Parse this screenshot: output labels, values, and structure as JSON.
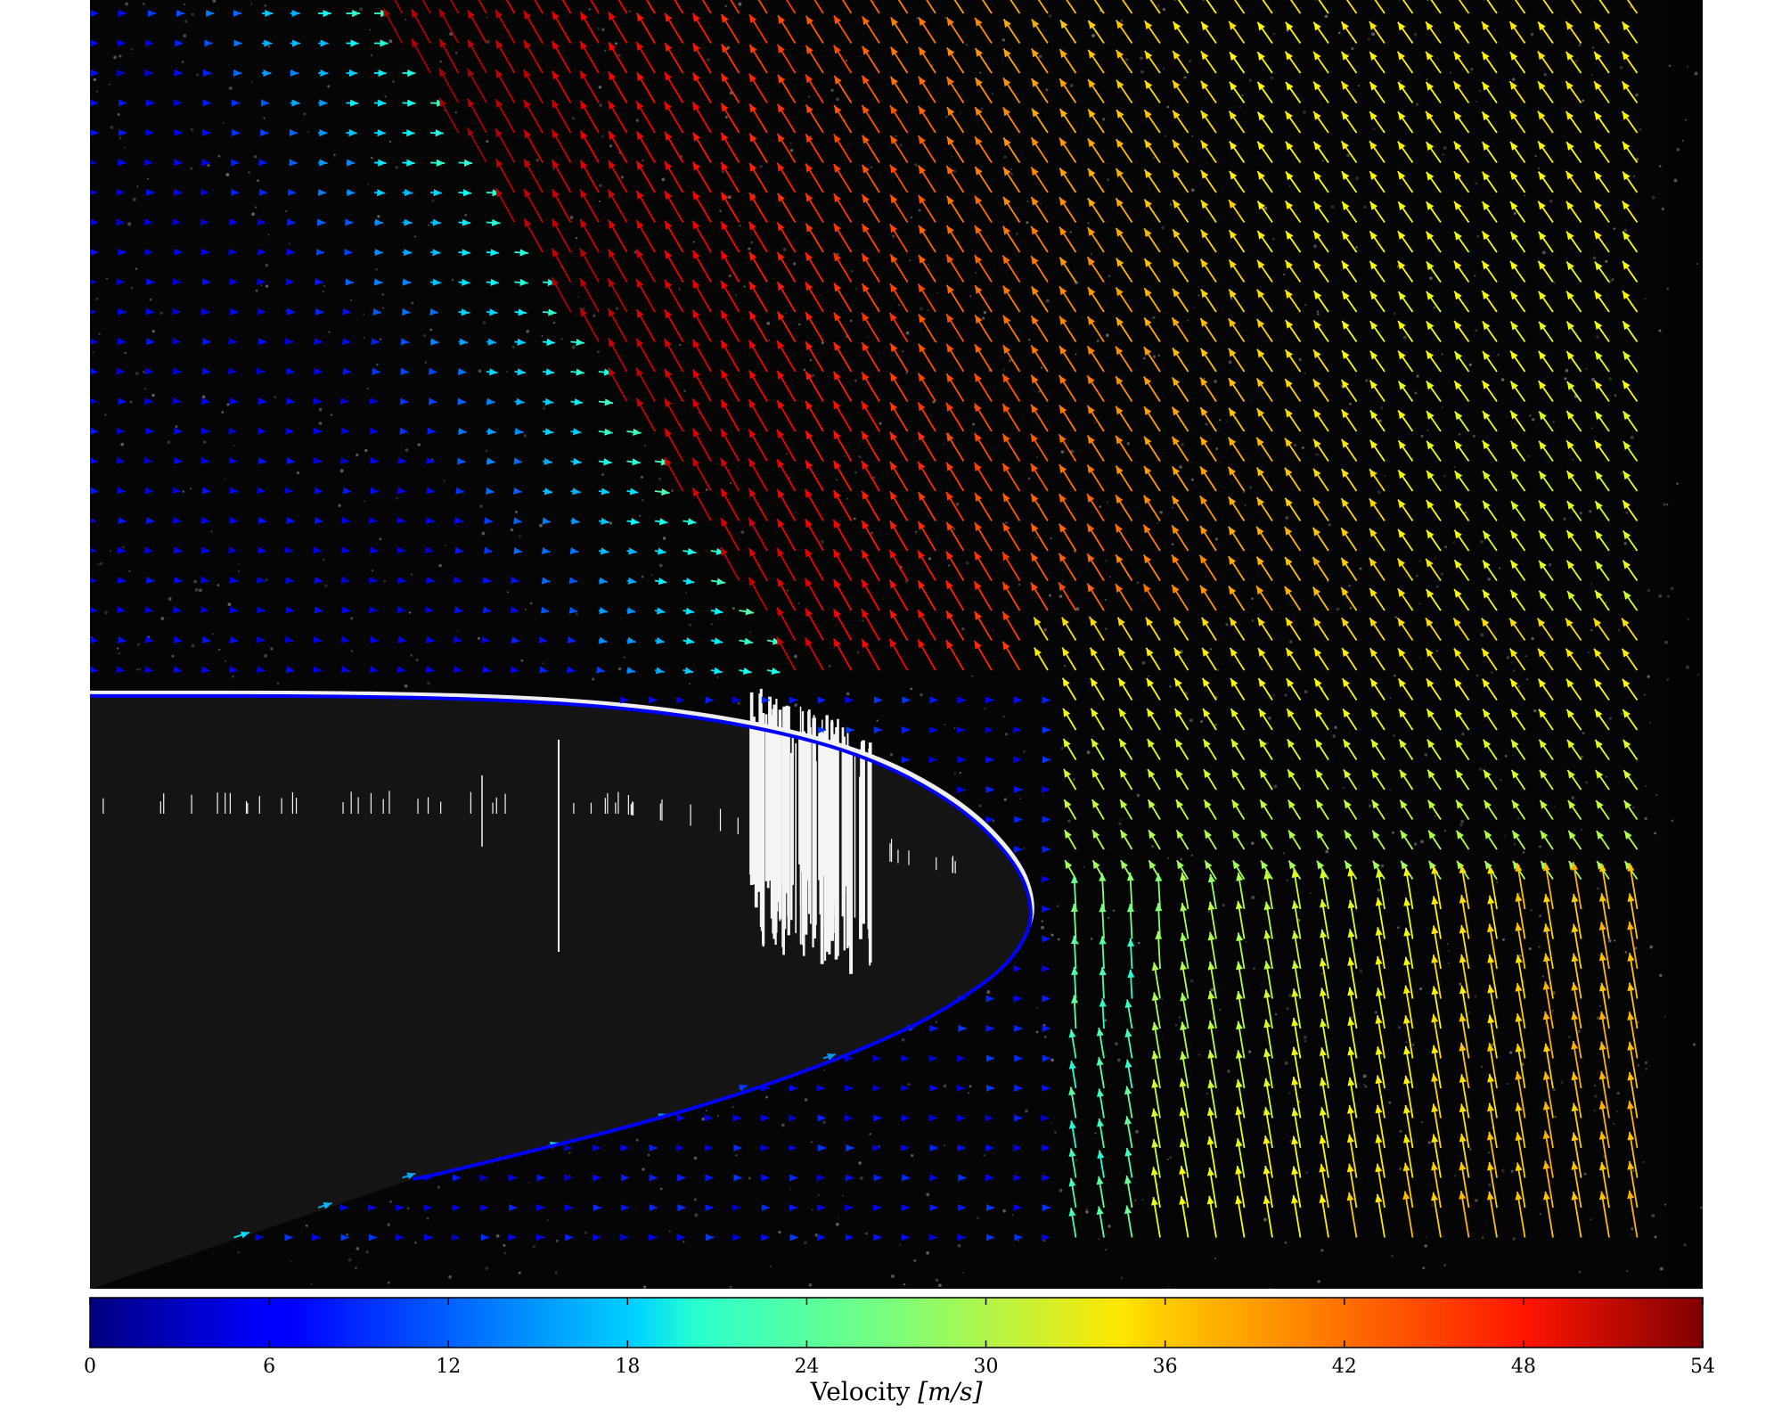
{
  "chart_data": {
    "type": "quiver",
    "title": "",
    "xlabel": "",
    "ylabel": "",
    "image_background": "grayscale PIV image, dark field with white body",
    "colorbar": {
      "label_prefix": "Velocity ",
      "label_units": "[m/s]",
      "colormap": "jet",
      "min": 0,
      "max": 54,
      "tick_labels": [
        "0",
        "6",
        "12",
        "18",
        "24",
        "30",
        "36",
        "42",
        "48",
        "54"
      ],
      "placement": "bottom"
    },
    "series": [
      {
        "kind": "body-contour-line",
        "color": "#0000ff",
        "description_points_in_relative_units": [
          [
            0.0,
            0.54
          ],
          [
            0.17,
            0.54
          ],
          [
            0.3,
            0.545
          ],
          [
            0.4,
            0.56
          ],
          [
            0.48,
            0.585
          ],
          [
            0.54,
            0.625
          ],
          [
            0.575,
            0.67
          ],
          [
            0.585,
            0.705
          ],
          [
            0.58,
            0.73
          ],
          [
            0.56,
            0.76
          ],
          [
            0.5,
            0.805
          ],
          [
            0.38,
            0.86
          ],
          [
            0.22,
            0.91
          ],
          [
            0.2,
            0.915
          ]
        ]
      }
    ],
    "vector_field": {
      "velocity_unit": "m/s",
      "grid_columns": 56,
      "grid_rows": 42,
      "freestream_velocity": 40,
      "max_velocity": 54
    }
  }
}
